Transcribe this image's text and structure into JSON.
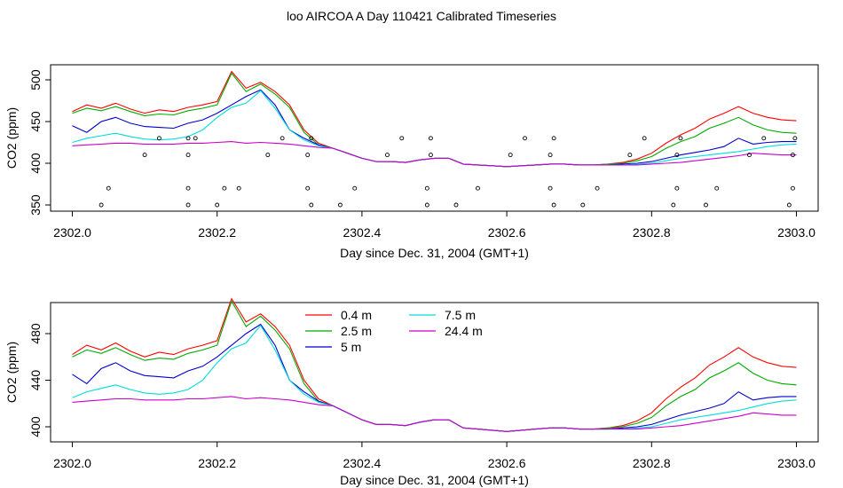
{
  "title": "loo AIRCOA A  Day 110421  Calibrated Timeseries",
  "chart_data": [
    {
      "type": "line",
      "xlabel": "Day since Dec. 31, 2004 (GMT+1)",
      "ylabel": "CO2 (ppm)",
      "xlim": [
        2301.97,
        2303.03
      ],
      "ylim": [
        345,
        515
      ],
      "xticks": [
        "2302.0",
        "2302.2",
        "2302.4",
        "2302.6",
        "2302.8",
        "2303.0"
      ],
      "yticks": [
        "350",
        "400",
        "450",
        "500"
      ],
      "x": [
        2302.0,
        2302.02,
        2302.04,
        2302.06,
        2302.08,
        2302.1,
        2302.12,
        2302.14,
        2302.16,
        2302.18,
        2302.2,
        2302.22,
        2302.24,
        2302.26,
        2302.28,
        2302.3,
        2302.32,
        2302.34,
        2302.36,
        2302.38,
        2302.4,
        2302.42,
        2302.44,
        2302.46,
        2302.48,
        2302.5,
        2302.52,
        2302.54,
        2302.56,
        2302.58,
        2302.6,
        2302.62,
        2302.64,
        2302.66,
        2302.68,
        2302.7,
        2302.72,
        2302.74,
        2302.76,
        2302.78,
        2302.8,
        2302.82,
        2302.84,
        2302.86,
        2302.88,
        2302.9,
        2302.92,
        2302.94,
        2302.96,
        2302.98,
        2303.0
      ],
      "series": [
        {
          "color": "#ff0000",
          "values": [
            462,
            470,
            466,
            472,
            465,
            460,
            464,
            462,
            467,
            470,
            474,
            510,
            490,
            497,
            486,
            470,
            440,
            424,
            418,
            412,
            406,
            402,
            402,
            401,
            404,
            406,
            406,
            399,
            398,
            397,
            396,
            397,
            398,
            399,
            399,
            398,
            398,
            399,
            401,
            405,
            412,
            424,
            434,
            442,
            453,
            460,
            468,
            460,
            455,
            452,
            451
          ]
        },
        {
          "color": "#00aa00",
          "values": [
            460,
            466,
            463,
            468,
            462,
            457,
            459,
            458,
            463,
            466,
            470,
            508,
            486,
            495,
            483,
            467,
            437,
            422,
            418,
            412,
            406,
            402,
            402,
            401,
            404,
            406,
            406,
            399,
            398,
            397,
            396,
            397,
            398,
            399,
            399,
            398,
            398,
            399,
            400,
            403,
            408,
            418,
            426,
            432,
            442,
            448,
            455,
            446,
            440,
            437,
            436
          ]
        },
        {
          "color": "#0000cc",
          "values": [
            445,
            437,
            450,
            455,
            448,
            444,
            443,
            442,
            448,
            452,
            460,
            470,
            480,
            488,
            470,
            440,
            430,
            422,
            418,
            412,
            406,
            402,
            402,
            401,
            404,
            406,
            406,
            399,
            398,
            397,
            396,
            397,
            398,
            399,
            399,
            398,
            398,
            398,
            399,
            400,
            402,
            406,
            410,
            413,
            416,
            420,
            430,
            423,
            425,
            426,
            426
          ]
        },
        {
          "color": "#00dddd",
          "values": [
            425,
            430,
            433,
            436,
            432,
            429,
            428,
            429,
            432,
            440,
            455,
            467,
            472,
            487,
            466,
            440,
            428,
            421,
            418,
            412,
            406,
            402,
            402,
            401,
            404,
            406,
            406,
            399,
            398,
            397,
            396,
            397,
            398,
            399,
            399,
            398,
            398,
            398,
            398,
            399,
            400,
            403,
            406,
            408,
            410,
            412,
            414,
            417,
            420,
            422,
            423
          ]
        },
        {
          "color": "#cc00cc",
          "values": [
            421,
            422,
            423,
            424,
            424,
            423,
            423,
            423,
            424,
            424,
            425,
            426,
            424,
            425,
            424,
            423,
            421,
            419,
            418,
            412,
            406,
            402,
            402,
            401,
            404,
            406,
            406,
            399,
            398,
            397,
            396,
            397,
            398,
            399,
            399,
            398,
            398,
            398,
            398,
            398,
            399,
            400,
            401,
            403,
            405,
            407,
            409,
            412,
            411,
            410,
            410
          ]
        }
      ],
      "points": {
        "x": [
          2302.04,
          2302.05,
          2302.1,
          2302.12,
          2302.16,
          2302.16,
          2302.16,
          2302.16,
          2302.17,
          2302.2,
          2302.21,
          2302.23,
          2302.27,
          2302.29,
          2302.325,
          2302.325,
          2302.33,
          2302.33,
          2302.37,
          2302.39,
          2302.435,
          2302.455,
          2302.49,
          2302.49,
          2302.495,
          2302.495,
          2302.53,
          2302.56,
          2302.605,
          2302.625,
          2302.66,
          2302.66,
          2302.665,
          2302.665,
          2302.705,
          2302.725,
          2302.77,
          2302.79,
          2302.83,
          2302.835,
          2302.835,
          2302.84,
          2302.875,
          2302.89,
          2302.935,
          2302.955,
          2302.99,
          2302.995,
          2302.995,
          2302.998
        ],
        "y": [
          350,
          370,
          410,
          430,
          350,
          370,
          410,
          430,
          430,
          350,
          370,
          370,
          410,
          430,
          370,
          410,
          350,
          430,
          350,
          370,
          410,
          430,
          350,
          370,
          410,
          430,
          350,
          370,
          410,
          430,
          370,
          410,
          350,
          430,
          350,
          370,
          410,
          430,
          350,
          370,
          410,
          430,
          350,
          370,
          410,
          430,
          350,
          370,
          410,
          430
        ]
      }
    },
    {
      "type": "line",
      "xlabel": "Day since Dec. 31, 2004 (GMT+1)",
      "ylabel": "CO2 (ppm)",
      "xlim": [
        2301.97,
        2303.03
      ],
      "ylim": [
        392,
        512
      ],
      "xticks": [
        "2302.0",
        "2302.2",
        "2302.4",
        "2302.6",
        "2302.8",
        "2303.0"
      ],
      "yticks": [
        "400",
        "440",
        "480"
      ],
      "legend_position": "top-center",
      "legend": [
        {
          "label": "0.4 m",
          "color": "#ff0000"
        },
        {
          "label": "7.5 m",
          "color": "#00dddd"
        },
        {
          "label": "2.5 m",
          "color": "#00aa00"
        },
        {
          "label": "24.4 m",
          "color": "#cc00cc"
        },
        {
          "label": "5 m",
          "color": "#0000cc"
        }
      ]
    }
  ]
}
